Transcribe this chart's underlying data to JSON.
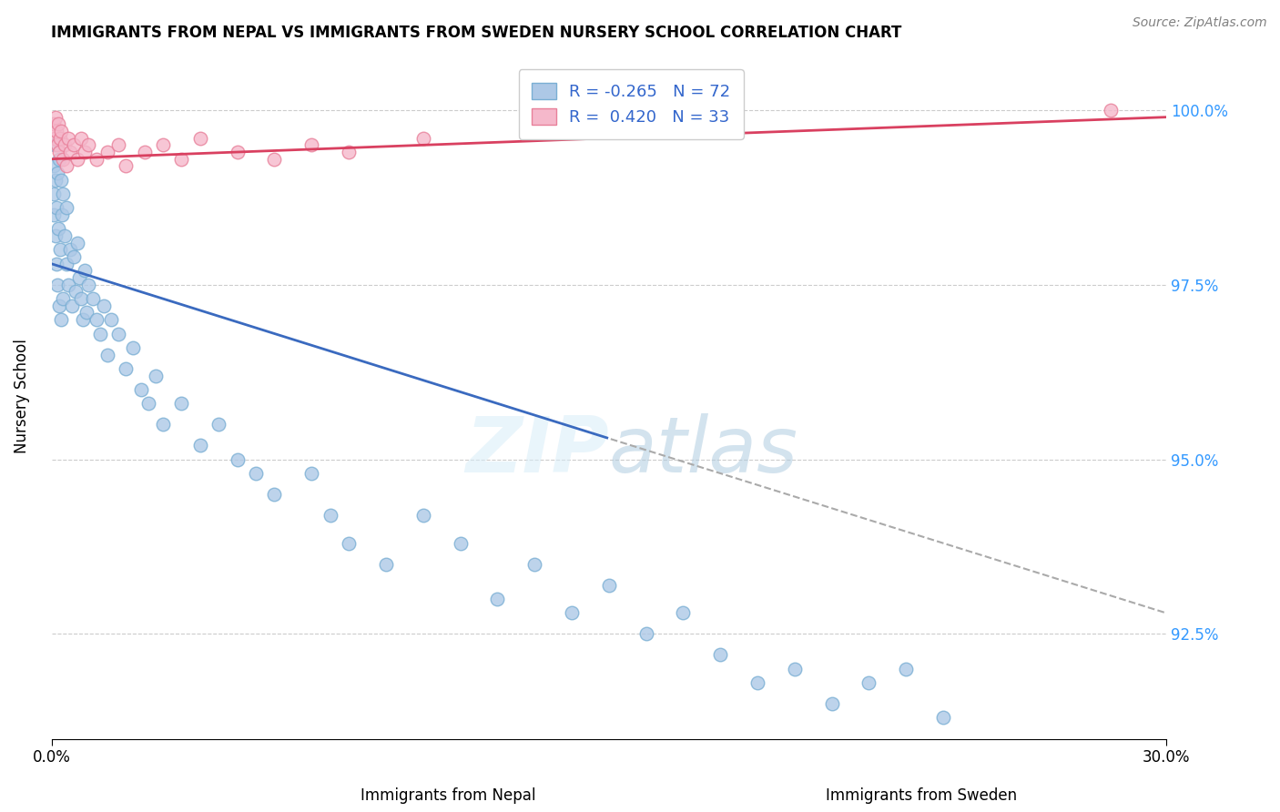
{
  "title": "IMMIGRANTS FROM NEPAL VS IMMIGRANTS FROM SWEDEN NURSERY SCHOOL CORRELATION CHART",
  "source": "Source: ZipAtlas.com",
  "xlabel_nepal": "Immigrants from Nepal",
  "xlabel_sweden": "Immigrants from Sweden",
  "ylabel": "Nursery School",
  "xlim": [
    0.0,
    30.0
  ],
  "ylim": [
    91.0,
    100.8
  ],
  "yticks": [
    92.5,
    95.0,
    97.5,
    100.0
  ],
  "ytick_labels": [
    "92.5%",
    "95.0%",
    "97.5%",
    "100.0%"
  ],
  "xticks": [
    0.0,
    30.0
  ],
  "xtick_labels": [
    "0.0%",
    "30.0%"
  ],
  "nepal_color": "#adc8e6",
  "nepal_edge_color": "#7aafd4",
  "sweden_color": "#f5b8cb",
  "sweden_edge_color": "#e8809a",
  "trend_nepal_color": "#3a6abf",
  "trend_sweden_color": "#d94060",
  "watermark": "ZIPatlas",
  "R_nepal": -0.265,
  "N_nepal": 72,
  "R_sweden": 0.42,
  "N_sweden": 33,
  "nepal_x": [
    0.05,
    0.05,
    0.07,
    0.08,
    0.1,
    0.1,
    0.12,
    0.13,
    0.15,
    0.15,
    0.18,
    0.2,
    0.2,
    0.22,
    0.25,
    0.25,
    0.28,
    0.3,
    0.3,
    0.35,
    0.4,
    0.4,
    0.45,
    0.5,
    0.55,
    0.6,
    0.65,
    0.7,
    0.75,
    0.8,
    0.85,
    0.9,
    0.95,
    1.0,
    1.1,
    1.2,
    1.3,
    1.4,
    1.5,
    1.6,
    1.8,
    2.0,
    2.2,
    2.4,
    2.6,
    2.8,
    3.0,
    3.5,
    4.0,
    4.5,
    5.0,
    5.5,
    6.0,
    7.0,
    7.5,
    8.0,
    9.0,
    10.0,
    11.0,
    12.0,
    13.0,
    14.0,
    15.0,
    16.0,
    17.0,
    18.0,
    19.0,
    20.0,
    21.0,
    22.0,
    23.0,
    24.0
  ],
  "nepal_y": [
    98.5,
    99.2,
    98.8,
    99.5,
    98.2,
    99.0,
    97.8,
    98.6,
    99.1,
    97.5,
    98.3,
    99.3,
    97.2,
    98.0,
    99.0,
    97.0,
    98.5,
    98.8,
    97.3,
    98.2,
    97.8,
    98.6,
    97.5,
    98.0,
    97.2,
    97.9,
    97.4,
    98.1,
    97.6,
    97.3,
    97.0,
    97.7,
    97.1,
    97.5,
    97.3,
    97.0,
    96.8,
    97.2,
    96.5,
    97.0,
    96.8,
    96.3,
    96.6,
    96.0,
    95.8,
    96.2,
    95.5,
    95.8,
    95.2,
    95.5,
    95.0,
    94.8,
    94.5,
    94.8,
    94.2,
    93.8,
    93.5,
    94.2,
    93.8,
    93.0,
    93.5,
    92.8,
    93.2,
    92.5,
    92.8,
    92.2,
    91.8,
    92.0,
    91.5,
    91.8,
    92.0,
    91.3
  ],
  "sweden_x": [
    0.05,
    0.08,
    0.1,
    0.12,
    0.15,
    0.18,
    0.2,
    0.22,
    0.25,
    0.3,
    0.35,
    0.4,
    0.45,
    0.5,
    0.6,
    0.7,
    0.8,
    0.9,
    1.0,
    1.2,
    1.5,
    1.8,
    2.0,
    2.5,
    3.0,
    3.5,
    4.0,
    5.0,
    6.0,
    7.0,
    8.0,
    10.0,
    28.5
  ],
  "sweden_y": [
    99.8,
    99.6,
    99.9,
    99.7,
    99.5,
    99.8,
    99.4,
    99.6,
    99.7,
    99.3,
    99.5,
    99.2,
    99.6,
    99.4,
    99.5,
    99.3,
    99.6,
    99.4,
    99.5,
    99.3,
    99.4,
    99.5,
    99.2,
    99.4,
    99.5,
    99.3,
    99.6,
    99.4,
    99.3,
    99.5,
    99.4,
    99.6,
    100.0
  ]
}
